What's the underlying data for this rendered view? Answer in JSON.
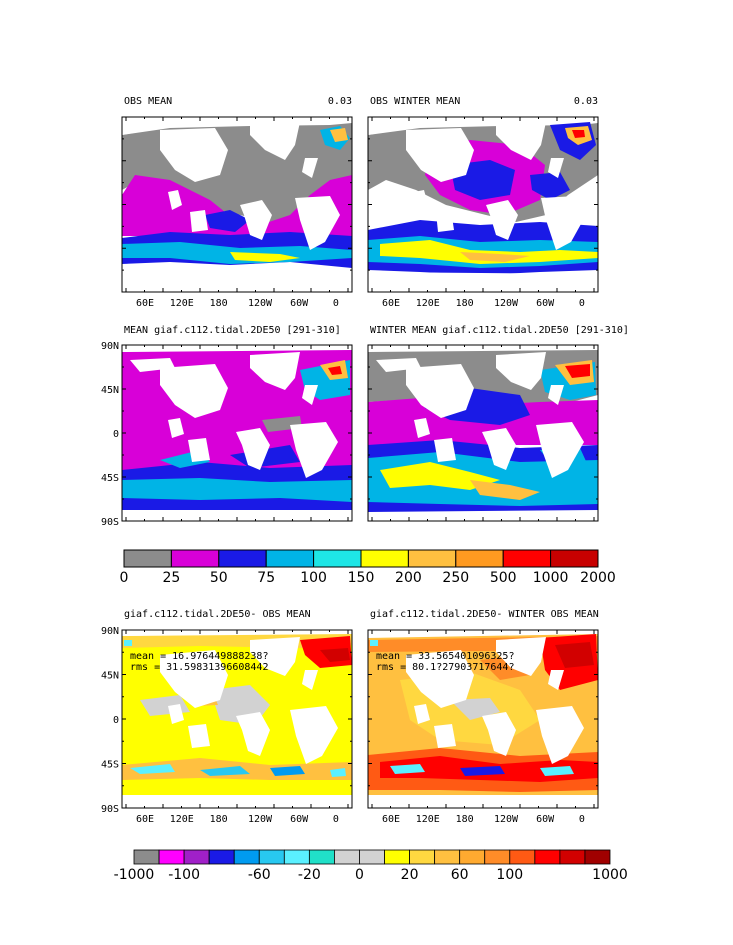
{
  "panels": [
    {
      "title": "OBS MEAN",
      "value": "0.03"
    },
    {
      "title": "OBS WINTER MEAN",
      "value": "0.03"
    },
    {
      "title": "MEAN giaf.c112.tidal.2DE50 [291-310]"
    },
    {
      "title": "WINTER MEAN giaf.c112.tidal.2DE50 [291-310]"
    },
    {
      "title": "giaf.c112.tidal.2DE50- OBS MEAN",
      "mean": "mean = 16.976449888238?",
      "rms": "rms = 31.59831396608442"
    },
    {
      "title": "giaf.c112.tidal.2DE50- WINTER OBS MEAN",
      "mean": "mean = 33.565401096325?",
      "rms": "rms = 80.1?27903717644?"
    }
  ],
  "lat_ticks": [
    "90N",
    "45N",
    "0",
    "45S",
    "90S"
  ],
  "lon_ticks": [
    "60E",
    "120E",
    "180",
    "120W",
    "60W",
    "0"
  ],
  "colorbar1": {
    "labels": [
      "0",
      "25",
      "50",
      "75",
      "100",
      "150",
      "200",
      "250",
      "500",
      "1000",
      "2000"
    ],
    "colors": [
      "#8c8c8c",
      "#d800d8",
      "#1a1ae6",
      "#00b4e6",
      "#1ee6e6",
      "#ffff00",
      "#ffc040",
      "#ff9a20",
      "#ff0000",
      "#c80000"
    ]
  },
  "colorbar2": {
    "labels": [
      "-1000",
      "-100",
      "-60",
      "-20",
      "0",
      "20",
      "60",
      "100",
      "1000"
    ],
    "colors": [
      "#8c8c8c",
      "#ff00ff",
      "#a020c8",
      "#1a1ae6",
      "#009bf0",
      "#28c8f0",
      "#5af0ff",
      "#20e0c8",
      "#d2d2d2",
      "#d2d2d2",
      "#ffff00",
      "#ffd840",
      "#ffc040",
      "#ffaa30",
      "#ff8c28",
      "#ff5a14",
      "#ff0000",
      "#d20000",
      "#a00000"
    ]
  }
}
